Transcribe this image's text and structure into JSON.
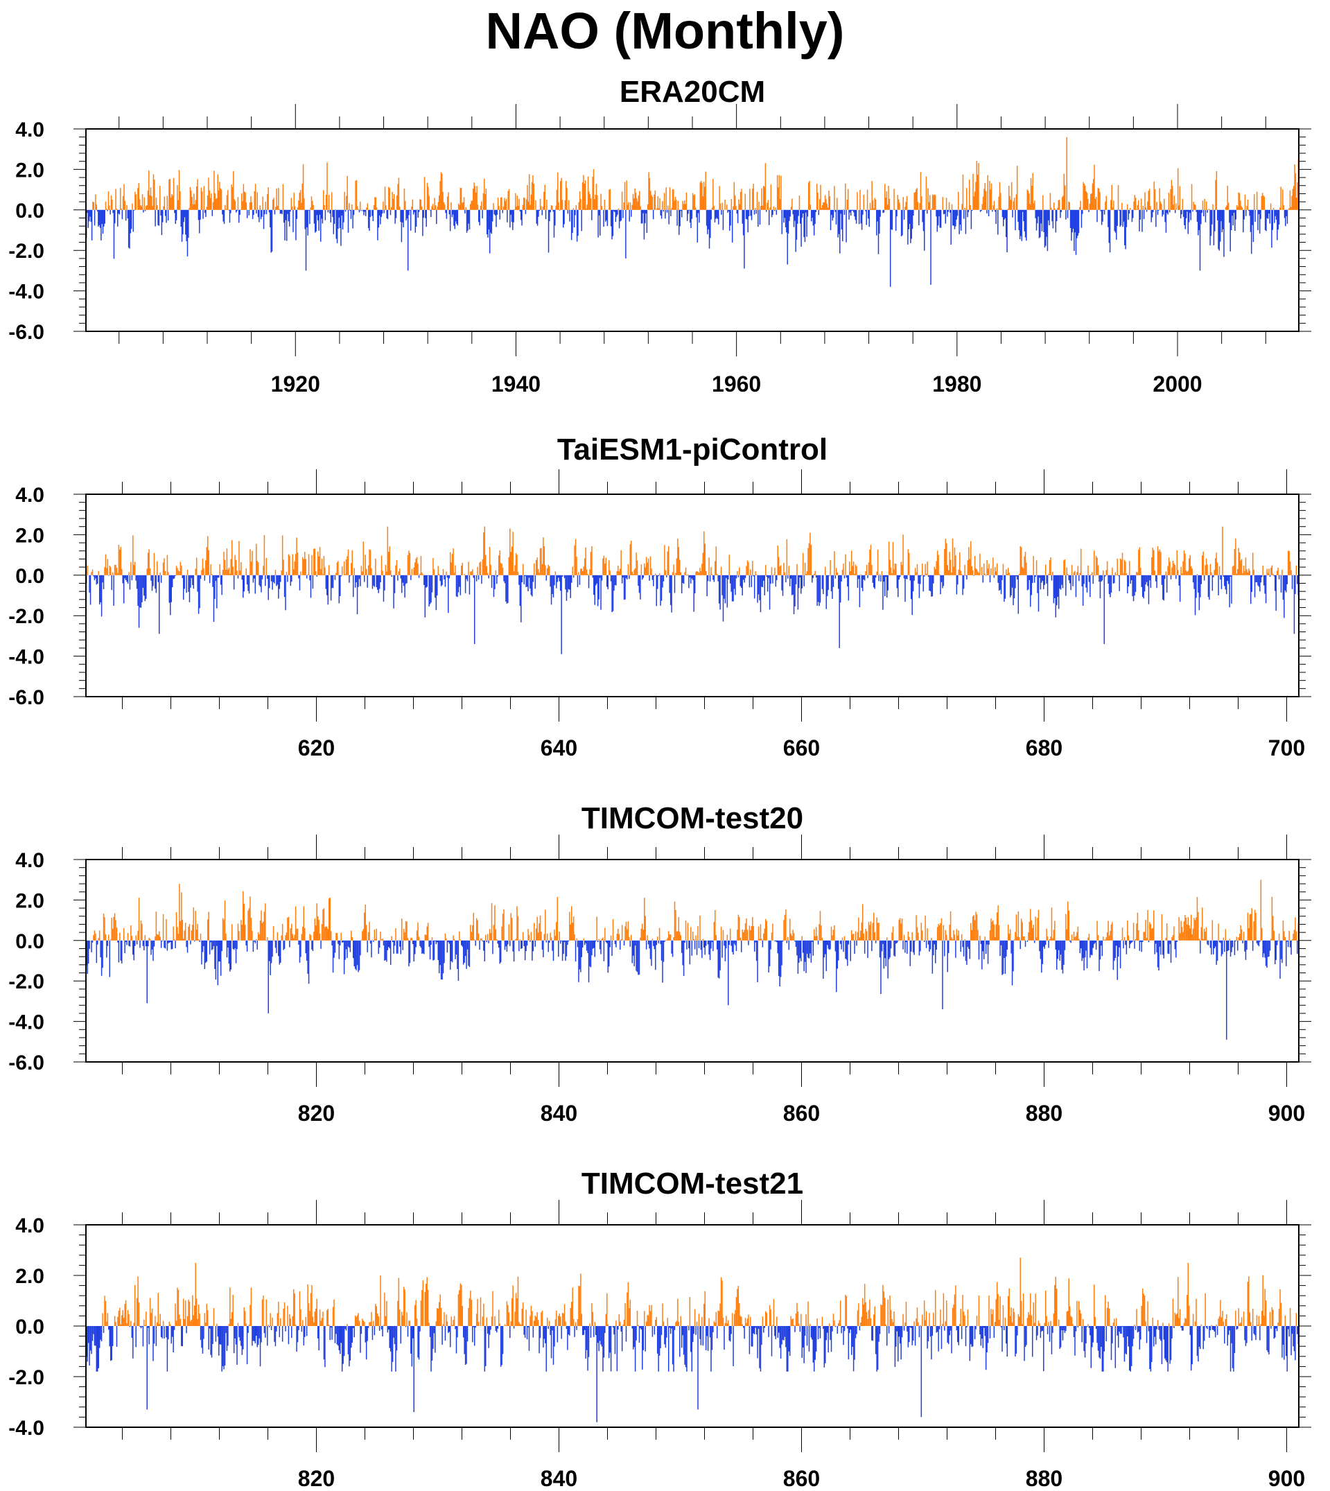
{
  "title": "NAO (Monthly)",
  "colors": {
    "positive": "#ff7f0e",
    "negative": "#1f3fe0",
    "axis": "#000000"
  },
  "chart_data": [
    {
      "type": "bar",
      "title": "ERA20CM",
      "xlabel": "",
      "ylabel": "",
      "xlim": [
        1901,
        2011
      ],
      "ylim": [
        -6,
        4
      ],
      "yticks": [
        4,
        2,
        0,
        -2,
        -4,
        -6
      ],
      "ytick_labels": [
        "4.0",
        "2.0",
        "0.0",
        "-2.0",
        "-4.0",
        "-6.0"
      ],
      "xticks": [
        1920,
        1940,
        1960,
        1980,
        2000
      ],
      "xtick_labels": [
        "1920",
        "1940",
        "1960",
        "1980",
        "2000"
      ],
      "seed": 11,
      "notable": [
        [
          1989.9,
          3.6
        ],
        [
          1973.9,
          -3.8
        ],
        [
          1977.6,
          -3.7
        ],
        [
          1930.2,
          -3.0
        ],
        [
          1920.9,
          -3.0
        ],
        [
          1964.6,
          -2.7
        ],
        [
          1960.7,
          -2.9
        ],
        [
          1949.9,
          -2.4
        ],
        [
          2002.0,
          -3.0
        ]
      ],
      "series": [
        {
          "values_encoding": "monthly NAO index bars: orange above zero, blue below zero"
        }
      ]
    },
    {
      "type": "bar",
      "title": "TaiESM1-piControl",
      "xlabel": "",
      "ylabel": "",
      "xlim": [
        601,
        701
      ],
      "ylim": [
        -6,
        4
      ],
      "yticks": [
        4,
        2,
        0,
        -2,
        -4,
        -6
      ],
      "ytick_labels": [
        "4.0",
        "2.0",
        "0.0",
        "-2.0",
        "-4.0",
        "-6.0"
      ],
      "xticks": [
        620,
        640,
        660,
        680,
        700
      ],
      "xtick_labels": [
        "620",
        "640",
        "660",
        "680",
        "700"
      ],
      "seed": 23,
      "notable": [
        [
          640.2,
          -3.9
        ],
        [
          633.0,
          -3.4
        ],
        [
          663.1,
          -3.6
        ],
        [
          684.9,
          -3.4
        ],
        [
          607.0,
          -2.9
        ],
        [
          700.6,
          -2.9
        ],
        [
          625.8,
          2.4
        ],
        [
          694.7,
          2.4
        ]
      ],
      "series": [
        {
          "values_encoding": "monthly NAO index bars: orange above zero, blue below zero"
        }
      ]
    },
    {
      "type": "bar",
      "title": "TIMCOM-test20",
      "xlabel": "",
      "ylabel": "",
      "xlim": [
        801,
        901
      ],
      "ylim": [
        -6,
        4
      ],
      "yticks": [
        4,
        2,
        0,
        -2,
        -4,
        -6
      ],
      "ytick_labels": [
        "4.0",
        "2.0",
        "0.0",
        "-2.0",
        "-4.0",
        "-6.0"
      ],
      "xticks": [
        820,
        840,
        860,
        880,
        900
      ],
      "xtick_labels": [
        "820",
        "840",
        "860",
        "880",
        "900"
      ],
      "seed": 37,
      "notable": [
        [
          895.0,
          -4.9
        ],
        [
          816.0,
          -3.6
        ],
        [
          871.6,
          -3.4
        ],
        [
          853.9,
          -3.2
        ],
        [
          806.0,
          -3.1
        ],
        [
          897.8,
          3.0
        ],
        [
          808.7,
          2.8
        ]
      ],
      "series": [
        {
          "values_encoding": "monthly NAO index bars: orange above zero, blue below zero"
        }
      ]
    },
    {
      "type": "bar",
      "title": "TIMCOM-test21",
      "xlabel": "",
      "ylabel": "",
      "xlim": [
        801,
        901
      ],
      "ylim": [
        -4,
        4
      ],
      "yticks": [
        4,
        2,
        0,
        -2,
        -4
      ],
      "ytick_labels": [
        "4.0",
        "2.0",
        "0.0",
        "-2.0",
        "-4.0"
      ],
      "xticks": [
        820,
        840,
        860,
        880,
        900
      ],
      "xtick_labels": [
        "820",
        "840",
        "860",
        "880",
        "900"
      ],
      "seed": 53,
      "notable": [
        [
          843.1,
          -3.8
        ],
        [
          869.8,
          -3.6
        ],
        [
          828.0,
          -3.4
        ],
        [
          851.4,
          -3.3
        ],
        [
          806.0,
          -3.3
        ],
        [
          878.0,
          2.7
        ],
        [
          891.8,
          2.5
        ],
        [
          810.0,
          2.5
        ]
      ],
      "series": [
        {
          "values_encoding": "monthly NAO index bars: orange above zero, blue below zero"
        }
      ]
    }
  ]
}
